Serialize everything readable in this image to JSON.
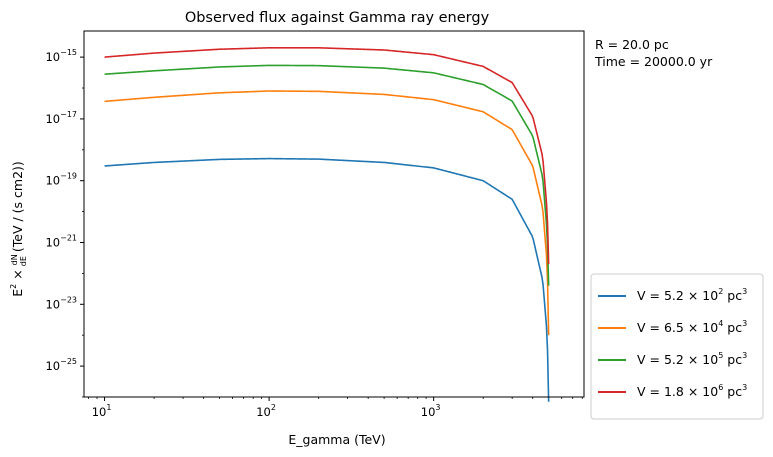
{
  "chart_data": {
    "type": "line",
    "title": "Observed flux against Gamma ray energy",
    "xlabel": "E_gamma (TeV)",
    "ylabel_parts": {
      "base": "E",
      "exp": "2",
      "times": "×",
      "num": "dN",
      "den": "dE",
      "unit": "(TeV / (s cm2))"
    },
    "x_scale": "log",
    "y_scale": "log",
    "xlim": [
      7.5,
      8200
    ],
    "ylim": [
      1e-26,
      7e-15
    ],
    "x_ticks": [
      {
        "value": 10,
        "base": "10",
        "exp": "1"
      },
      {
        "value": 100,
        "base": "10",
        "exp": "2"
      },
      {
        "value": 1000,
        "base": "10",
        "exp": "3"
      }
    ],
    "y_ticks": [
      {
        "value": 1e-15,
        "base": "10",
        "exp": "−15"
      },
      {
        "value": 1e-17,
        "base": "10",
        "exp": "−17"
      },
      {
        "value": 1e-19,
        "base": "10",
        "exp": "−19"
      },
      {
        "value": 1e-21,
        "base": "10",
        "exp": "−21"
      },
      {
        "value": 1e-23,
        "base": "10",
        "exp": "−23"
      },
      {
        "value": 1e-25,
        "base": "10",
        "exp": "−25"
      }
    ],
    "annotations": [
      "R = 20.0 pc",
      "Time = 20000.0 yr"
    ],
    "legend_position": "outside-lower-right",
    "series": [
      {
        "label": {
          "prefix": "V = 5.2 × 10",
          "exp": "2",
          "mid": " pc",
          "exp2": "3"
        },
        "color": "#1f77b4",
        "points": [
          [
            10,
            3e-19
          ],
          [
            20,
            3.9e-19
          ],
          [
            50,
            4.9e-19
          ],
          [
            100,
            5.2e-19
          ],
          [
            200,
            5e-19
          ],
          [
            500,
            3.9e-19
          ],
          [
            1000,
            2.6e-19
          ],
          [
            2000,
            1e-19
          ],
          [
            3000,
            2.5e-20
          ],
          [
            4000,
            1.5e-21
          ],
          [
            4600,
            6e-23
          ],
          [
            4900,
            1e-24
          ],
          [
            5000,
            7e-27
          ]
        ]
      },
      {
        "label": {
          "prefix": "V = 6.5 × 10",
          "exp": "4",
          "mid": " pc",
          "exp2": "3"
        },
        "color": "#ff7f0e",
        "points": [
          [
            10,
            3.7e-17
          ],
          [
            20,
            5e-17
          ],
          [
            50,
            7e-17
          ],
          [
            100,
            8e-17
          ],
          [
            200,
            7.8e-17
          ],
          [
            500,
            6.2e-17
          ],
          [
            1000,
            4.2e-17
          ],
          [
            2000,
            1.7e-17
          ],
          [
            3000,
            4.5e-18
          ],
          [
            4000,
            3e-19
          ],
          [
            4600,
            1.3e-20
          ],
          [
            4900,
            2e-22
          ],
          [
            5000,
            1e-24
          ]
        ]
      },
      {
        "label": {
          "prefix": "V = 5.2 × 10",
          "exp": "5",
          "mid": " pc",
          "exp2": "3"
        },
        "color": "#2ca02c",
        "points": [
          [
            10,
            2.8e-16
          ],
          [
            20,
            3.6e-16
          ],
          [
            50,
            4.8e-16
          ],
          [
            100,
            5.4e-16
          ],
          [
            200,
            5.3e-16
          ],
          [
            500,
            4.4e-16
          ],
          [
            1000,
            3.1e-16
          ],
          [
            2000,
            1.3e-16
          ],
          [
            3000,
            3.8e-17
          ],
          [
            4000,
            2.8e-18
          ],
          [
            4600,
            1.3e-19
          ],
          [
            4900,
            2e-21
          ],
          [
            5000,
            4e-23
          ]
        ]
      },
      {
        "label": {
          "prefix": "V = 1.8 × 10",
          "exp": "6",
          "mid": " pc",
          "exp2": "3"
        },
        "color": "#d62728",
        "points": [
          [
            10,
            1e-15
          ],
          [
            20,
            1.35e-15
          ],
          [
            50,
            1.8e-15
          ],
          [
            100,
            2e-15
          ],
          [
            200,
            2e-15
          ],
          [
            500,
            1.7e-15
          ],
          [
            1000,
            1.2e-15
          ],
          [
            2000,
            5e-16
          ],
          [
            3000,
            1.5e-16
          ],
          [
            4000,
            1.2e-17
          ],
          [
            4600,
            6e-19
          ],
          [
            4900,
            1e-20
          ],
          [
            5000,
            2e-22
          ]
        ]
      }
    ]
  }
}
